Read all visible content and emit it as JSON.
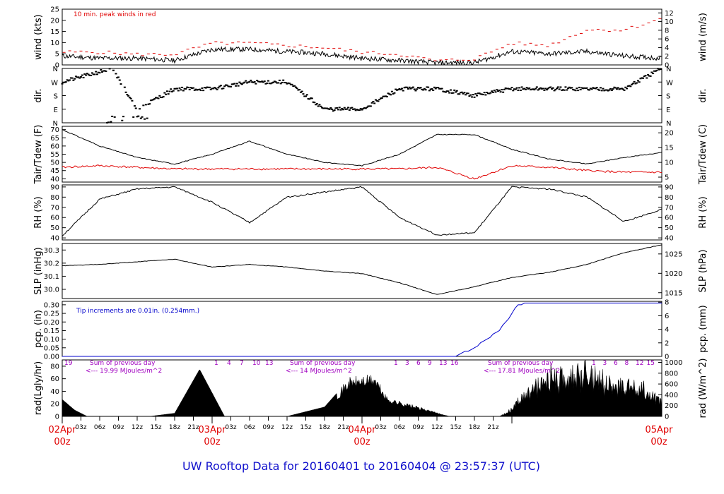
{
  "title": "UW Rooftop Data for 20160401  to  20160404 @ 23:57:37  (UTC)",
  "colors": {
    "red": "#e00000",
    "blue": "#0000cc",
    "purple": "#a000c0",
    "title": "#1010cc"
  },
  "panels": {
    "wind": {
      "ylabel_left": "wind (kts)",
      "ylabel_right": "wind (m/s)",
      "note": "10 min. peak winds in red",
      "left_ticks": [
        "0",
        "5",
        "10",
        "15",
        "20",
        "25"
      ],
      "right_ticks": [
        "0",
        "2",
        "4",
        "6",
        "8",
        "10",
        "12"
      ]
    },
    "dir": {
      "ylabel": "dir.",
      "ticks": [
        "N",
        "E",
        "S",
        "W",
        "N"
      ]
    },
    "temp": {
      "ylabel_left": "Tair/Tdew (F)",
      "ylabel_right": "Tair/Tdew (C)",
      "left_ticks": [
        "40",
        "45",
        "50",
        "55",
        "60",
        "65",
        "70"
      ],
      "right_ticks": [
        "5",
        "10",
        "15",
        "20"
      ]
    },
    "rh": {
      "ylabel": "RH (%)",
      "ticks": [
        "40",
        "50",
        "60",
        "70",
        "80",
        "90"
      ]
    },
    "slp": {
      "ylabel_left": "SLP (inHg)",
      "ylabel_right": "SLP (hPa)",
      "left_ticks": [
        "30.0",
        "30.1",
        "30.2",
        "30.3"
      ],
      "right_ticks": [
        "1015",
        "1020",
        "1025"
      ]
    },
    "pcp": {
      "ylabel_left": "pcp. (in)",
      "ylabel_right": "pcp. (mm)",
      "note": "Tip increments are 0.01in. (0.254mm.)",
      "left_ticks": [
        "0.00",
        "0.05",
        "0.10",
        "0.15",
        "0.20",
        "0.25",
        "0.30"
      ],
      "right_ticks": [
        "0",
        "2",
        "4",
        "6",
        "8"
      ]
    },
    "rad": {
      "ylabel_left": "rad(Lgly/hr)",
      "ylabel_right": "rad (W/m^2)",
      "left_ticks": [
        "0",
        "20",
        "40",
        "60",
        "80"
      ],
      "right_ticks": [
        "0",
        "200",
        "400",
        "600",
        "800",
        "1000"
      ],
      "sum_label": "Sum of previous day",
      "day_sums": [
        "<--- 19.99 MJoules/m^2",
        "<--- 14 MJoules/m^2",
        "<--- 17.81 MJoules/m^2"
      ],
      "hour_marks": [
        [
          "1",
          "4",
          "7",
          "10",
          "13"
        ],
        [
          "1",
          "3",
          "6",
          "9",
          "13",
          "16"
        ],
        [
          "1",
          "3",
          "6",
          "8",
          "12",
          "15"
        ]
      ],
      "first_mark": "19"
    }
  },
  "xaxis": {
    "hour_ticks": [
      "03z",
      "06z",
      "09z",
      "12z",
      "15z",
      "18z",
      "21z",
      "03z",
      "06z",
      "09z",
      "12z",
      "15z",
      "18z",
      "21z",
      "03z",
      "06z",
      "09z",
      "12z",
      "15z",
      "18z",
      "21z"
    ],
    "day_labels": [
      [
        "02Apr",
        "00z"
      ],
      [
        "03Apr",
        "00z"
      ],
      [
        "04Apr",
        "00z"
      ],
      [
        "05Apr",
        "00z"
      ]
    ]
  },
  "chart_data": [
    {
      "type": "line",
      "title": "wind",
      "ylabel": "wind (kts)",
      "ylim": [
        0,
        25
      ],
      "series": [
        {
          "x": [
            0,
            6,
            12,
            18,
            24,
            30,
            36,
            42,
            48,
            54,
            60,
            66,
            72,
            78,
            84,
            90,
            96
          ],
          "values": [
            4,
            3,
            3,
            2,
            7,
            7,
            6,
            5,
            3,
            2,
            1,
            1,
            6,
            5,
            6,
            4,
            3
          ]
        },
        {
          "x": [
            0,
            6,
            12,
            18,
            24,
            30,
            36,
            42,
            48,
            54,
            60,
            66,
            72,
            78,
            84,
            90,
            96
          ],
          "values": [
            5,
            5,
            4,
            4,
            9,
            9,
            8,
            7,
            5,
            4,
            1,
            2,
            9,
            8,
            15,
            15,
            20
          ]
        }
      ]
    },
    {
      "type": "scatter",
      "title": "dir.",
      "ylabel": "dir.",
      "yticks": [
        "N",
        "E",
        "S",
        "W",
        "N"
      ],
      "series": [
        {
          "x": [
            0,
            8,
            12,
            18,
            24,
            30,
            36,
            42,
            48,
            54,
            60,
            66,
            72,
            78,
            84,
            90,
            96
          ],
          "values": [
            "W",
            "N",
            "E",
            "SW",
            "SW",
            "W",
            "W",
            "E",
            "E",
            "SW",
            "SW",
            "S",
            "SW",
            "SW",
            "SW",
            "SW",
            "N"
          ]
        }
      ]
    },
    {
      "type": "line",
      "title": "Tair/Tdew",
      "ylabel": "Tair/Tdew (F)",
      "ylim": [
        38,
        72
      ],
      "series": [
        {
          "name": "Tair",
          "x": [
            0,
            6,
            12,
            18,
            24,
            30,
            36,
            42,
            48,
            54,
            60,
            66,
            72,
            78,
            84,
            90,
            96
          ],
          "values": [
            70,
            60,
            53,
            49,
            55,
            63,
            55,
            50,
            48,
            55,
            67,
            67,
            58,
            52,
            49,
            53,
            56
          ]
        },
        {
          "name": "Tdew",
          "x": [
            0,
            6,
            12,
            18,
            24,
            30,
            36,
            42,
            48,
            54,
            60,
            66,
            72,
            78,
            84,
            90,
            96
          ],
          "values": [
            47,
            48,
            47,
            46,
            46,
            46,
            46,
            46,
            46,
            46,
            47,
            40,
            48,
            47,
            45,
            44,
            44
          ]
        }
      ]
    },
    {
      "type": "line",
      "title": "RH",
      "ylabel": "RH (%)",
      "ylim": [
        38,
        92
      ],
      "series": [
        {
          "x": [
            0,
            6,
            12,
            18,
            24,
            30,
            36,
            42,
            48,
            54,
            60,
            66,
            72,
            78,
            84,
            90,
            96
          ],
          "values": [
            42,
            78,
            88,
            90,
            75,
            55,
            80,
            85,
            90,
            60,
            43,
            45,
            90,
            88,
            80,
            56,
            68
          ]
        }
      ]
    },
    {
      "type": "line",
      "title": "SLP",
      "ylabel": "SLP (inHg)",
      "ylim": [
        29.93,
        30.35
      ],
      "series": [
        {
          "x": [
            0,
            6,
            12,
            18,
            24,
            30,
            36,
            42,
            48,
            54,
            60,
            66,
            72,
            78,
            84,
            90,
            96
          ],
          "values": [
            30.18,
            30.19,
            30.21,
            30.23,
            30.17,
            30.19,
            30.17,
            30.14,
            30.12,
            30.05,
            29.96,
            30.02,
            30.09,
            30.13,
            30.19,
            30.28,
            30.34
          ]
        }
      ]
    },
    {
      "type": "area",
      "title": "pcp.",
      "ylabel": "pcp. (in)",
      "ylim": [
        0,
        0.32
      ],
      "series": [
        {
          "x": [
            0,
            60,
            63,
            66,
            70,
            73,
            75,
            96
          ],
          "values": [
            0,
            0,
            0,
            0.05,
            0.15,
            0.3,
            0.31,
            0.31
          ]
        }
      ]
    },
    {
      "type": "area",
      "title": "rad",
      "ylabel": "rad(Lgly/hr)",
      "ylim": [
        0,
        90
      ],
      "series": [
        {
          "x": [
            0,
            2,
            4,
            14,
            18,
            20,
            22,
            26,
            36,
            42,
            46,
            50,
            52,
            62,
            64,
            66,
            70,
            72,
            76,
            84,
            96
          ],
          "values": [
            27,
            10,
            0,
            0,
            5,
            40,
            75,
            0,
            0,
            15,
            60,
            65,
            30,
            0,
            0,
            0,
            0,
            15,
            70,
            85,
            40
          ]
        }
      ]
    }
  ]
}
